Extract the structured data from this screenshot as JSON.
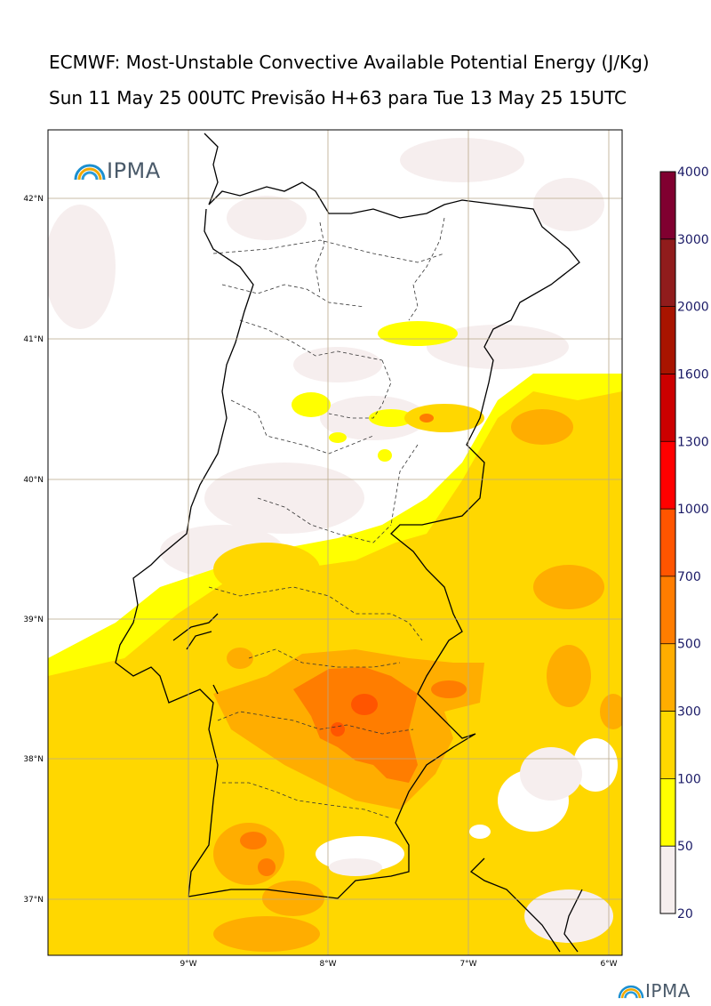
{
  "header": {
    "title": "ECMWF: Most-Unstable Convective Available Potential Energy (J/Kg)",
    "subtitle": "Sun 11 May 25 00UTC Previsão H+63 para Tue 13 May 25 15UTC"
  },
  "logos": {
    "main": "IPMA",
    "footer": "IPMA"
  },
  "axes": {
    "lat_labels": [
      "42°N",
      "41°N",
      "40°N",
      "39°N",
      "38°N",
      "37°N"
    ],
    "lon_labels": [
      "9°W",
      "8°W",
      "7°W",
      "6°W"
    ]
  },
  "colorbar": {
    "levels": [
      "20",
      "50",
      "100",
      "300",
      "500",
      "700",
      "1000",
      "1300",
      "1600",
      "2000",
      "3000",
      "4000"
    ],
    "colors": [
      "#f6eeee",
      "#ffff00",
      "#ffd700",
      "#ffad00",
      "#ff7d00",
      "#ff5500",
      "#ff0000",
      "#cc0000",
      "#a81400",
      "#901c1c",
      "#800030",
      "#6b1200"
    ]
  },
  "palette": {
    "land": "#ffffff",
    "sea": "#ffffff",
    "cape_low": "#f6eeee",
    "cape_50": "#ffff00",
    "cape_100": "#ffd700",
    "cape_300": "#ffad00",
    "cape_500": "#ff7d00",
    "grid": "#b9a98a",
    "coast": "#000000"
  }
}
